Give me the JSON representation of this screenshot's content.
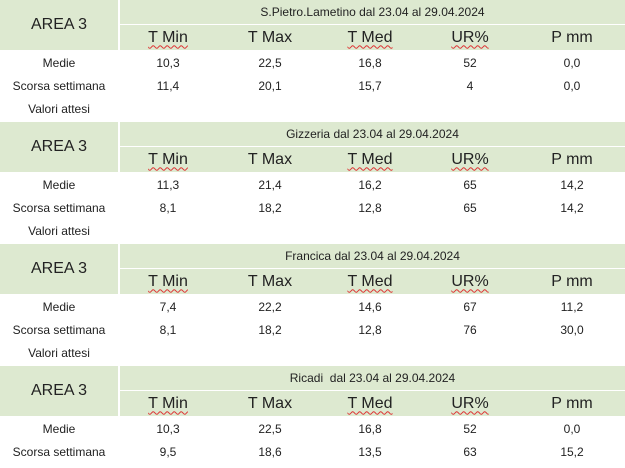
{
  "blocks": [
    {
      "area": "AREA 3",
      "title": "S.Pietro.Lametino dal 23.04 al 29.04.2024",
      "headers": [
        "T Min",
        "T Max",
        "T Med",
        "UR%",
        "P mm"
      ],
      "rows": [
        {
          "label": "Medie",
          "values": [
            "10,3",
            "22,5",
            "16,8",
            "52",
            "0,0"
          ]
        },
        {
          "label": "Scorsa settimana",
          "values": [
            "11,4",
            "20,1",
            "15,7",
            "4",
            "0,0"
          ]
        },
        {
          "label": "Valori attesi"
        }
      ]
    },
    {
      "area": "AREA 3",
      "title": "Gizzeria dal 23.04 al 29.04.2024",
      "headers": [
        "T Min",
        "T Max",
        "T Med",
        "UR%",
        "P mm"
      ],
      "rows": [
        {
          "label": "Medie",
          "values": [
            "11,3",
            "21,4",
            "16,2",
            "65",
            "14,2"
          ]
        },
        {
          "label": "Scorsa settimana",
          "values": [
            "8,1",
            "18,2",
            "12,8",
            "65",
            "14,2"
          ]
        },
        {
          "label": "Valori attesi"
        }
      ]
    },
    {
      "area": "AREA 3",
      "title": "Francica dal 23.04 al 29.04.2024",
      "headers": [
        "T Min",
        "T Max",
        "T Med",
        "UR%",
        "P mm"
      ],
      "rows": [
        {
          "label": "Medie",
          "values": [
            "7,4",
            "22,2",
            "14,6",
            "67",
            "11,2"
          ]
        },
        {
          "label": "Scorsa settimana",
          "values": [
            "8,1",
            "18,2",
            "12,8",
            "76",
            "30,0"
          ]
        },
        {
          "label": "Valori attesi"
        }
      ]
    },
    {
      "area": "AREA 3",
      "title": "Ricadi  dal 23.04 al 29.04.2024",
      "headers": [
        "T Min",
        "T Max",
        "T Med",
        "UR%",
        "P mm"
      ],
      "rows": [
        {
          "label": "Medie",
          "values": [
            "10,3",
            "22,5",
            "16,8",
            "52",
            "0,0"
          ]
        },
        {
          "label": "Scorsa settimana",
          "values": [
            "9,5",
            "18,6",
            "13,5",
            "63",
            "15,2"
          ]
        }
      ]
    }
  ]
}
